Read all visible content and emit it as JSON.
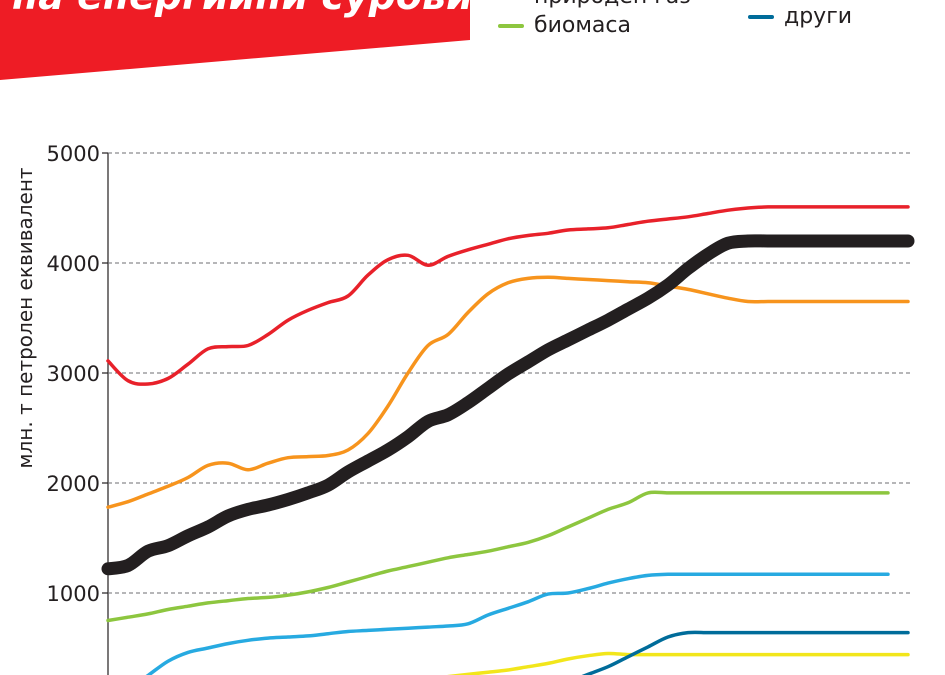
{
  "header": {
    "title": "на енергийни суровини",
    "banner_color": "#ee1c25"
  },
  "legend": [
    {
      "label": "природен газ",
      "color": "#231f20"
    },
    {
      "label": "биомаса",
      "color": "#8dc63f"
    },
    {
      "label": "други",
      "color": "#006c9a"
    }
  ],
  "chart_data": {
    "type": "line",
    "ylabel": "млн. т петролен еквивалент",
    "ylim": [
      0,
      5000
    ],
    "y_ticks": [
      1000,
      2000,
      3000,
      4000,
      5000
    ],
    "grid": true,
    "x": [
      0,
      1,
      2,
      3,
      4,
      5,
      6,
      7,
      8,
      9,
      10,
      11,
      12,
      13,
      14,
      15,
      16,
      17,
      18,
      19,
      20,
      21,
      22,
      23,
      24,
      25,
      26,
      27,
      28,
      29,
      30,
      31,
      32,
      33,
      34,
      35,
      36,
      37,
      38,
      39,
      40
    ],
    "series": [
      {
        "name": "",
        "color": "#e8212a",
        "width": 3.5,
        "values": [
          3110,
          2930,
          2900,
          2950,
          3080,
          3220,
          3240,
          3250,
          3350,
          3480,
          3570,
          3640,
          3700,
          3890,
          4030,
          4070,
          3980,
          4060,
          4120,
          4170,
          4220,
          4250,
          4270,
          4300,
          4310,
          4320,
          4350,
          4380,
          4400,
          4420,
          4450,
          4480,
          4500,
          4510,
          4510,
          4510,
          4510,
          4510,
          4510,
          4510,
          4510
        ]
      },
      {
        "name": "",
        "color": "#f7941d",
        "width": 3.5,
        "values": [
          1780,
          1830,
          1900,
          1970,
          2050,
          2160,
          2180,
          2120,
          2180,
          2230,
          2240,
          2250,
          2300,
          2450,
          2700,
          3000,
          3250,
          3350,
          3550,
          3720,
          3820,
          3860,
          3870,
          3860,
          3850,
          3840,
          3830,
          3820,
          3790,
          3760,
          3720,
          3680,
          3650,
          3650,
          3650,
          3650,
          3650,
          3650,
          3650,
          3650,
          3650
        ]
      },
      {
        "name": "природен газ",
        "color": "#231f20",
        "width": 13,
        "values": [
          1220,
          1250,
          1380,
          1430,
          1520,
          1600,
          1700,
          1760,
          1800,
          1850,
          1910,
          1980,
          2100,
          2200,
          2300,
          2420,
          2560,
          2620,
          2730,
          2860,
          2990,
          3100,
          3210,
          3300,
          3390,
          3480,
          3580,
          3680,
          3800,
          3950,
          4080,
          4180,
          4200,
          4200,
          4200,
          4200,
          4200,
          4200,
          4200,
          4200,
          4200
        ]
      },
      {
        "name": "биомаса",
        "color": "#8dc63f",
        "width": 3.5,
        "values": [
          750,
          780,
          810,
          850,
          880,
          910,
          930,
          950,
          960,
          980,
          1010,
          1050,
          1100,
          1150,
          1200,
          1240,
          1280,
          1320,
          1350,
          1380,
          1420,
          1460,
          1520,
          1600,
          1680,
          1760,
          1820,
          1910,
          1910,
          1910,
          1910,
          1910,
          1910,
          1910,
          1910,
          1910,
          1910,
          1910,
          1910,
          1910,
          1910
        ]
      },
      {
        "name": "",
        "color": "#27aae1",
        "width": 3.5,
        "values": [
          0,
          120,
          250,
          380,
          460,
          500,
          540,
          570,
          590,
          600,
          610,
          630,
          650,
          660,
          670,
          680,
          690,
          700,
          720,
          800,
          860,
          920,
          990,
          1000,
          1040,
          1090,
          1130,
          1160,
          1170,
          1170,
          1170,
          1170,
          1170,
          1170,
          1170,
          1170,
          1170,
          1170,
          1170,
          1170,
          1170
        ]
      },
      {
        "name": "",
        "color": "#f2e61b",
        "width": 3.5,
        "values": [
          0,
          0,
          0,
          0,
          0,
          0,
          0,
          0,
          0,
          0,
          0,
          0,
          0,
          80,
          140,
          190,
          220,
          240,
          260,
          280,
          300,
          330,
          360,
          400,
          430,
          450,
          440,
          440,
          440,
          440,
          440,
          440,
          440,
          440,
          440,
          440,
          440,
          440,
          440,
          440,
          440
        ]
      },
      {
        "name": "други",
        "color": "#006c9a",
        "width": 3.5,
        "values": [
          0,
          0,
          0,
          0,
          0,
          0,
          0,
          0,
          0,
          0,
          0,
          0,
          0,
          0,
          0,
          0,
          0,
          0,
          0,
          0,
          0,
          40,
          120,
          190,
          260,
          330,
          420,
          510,
          600,
          640,
          640,
          640,
          640,
          640,
          640,
          640,
          640,
          640,
          640,
          640,
          640
        ]
      }
    ]
  }
}
